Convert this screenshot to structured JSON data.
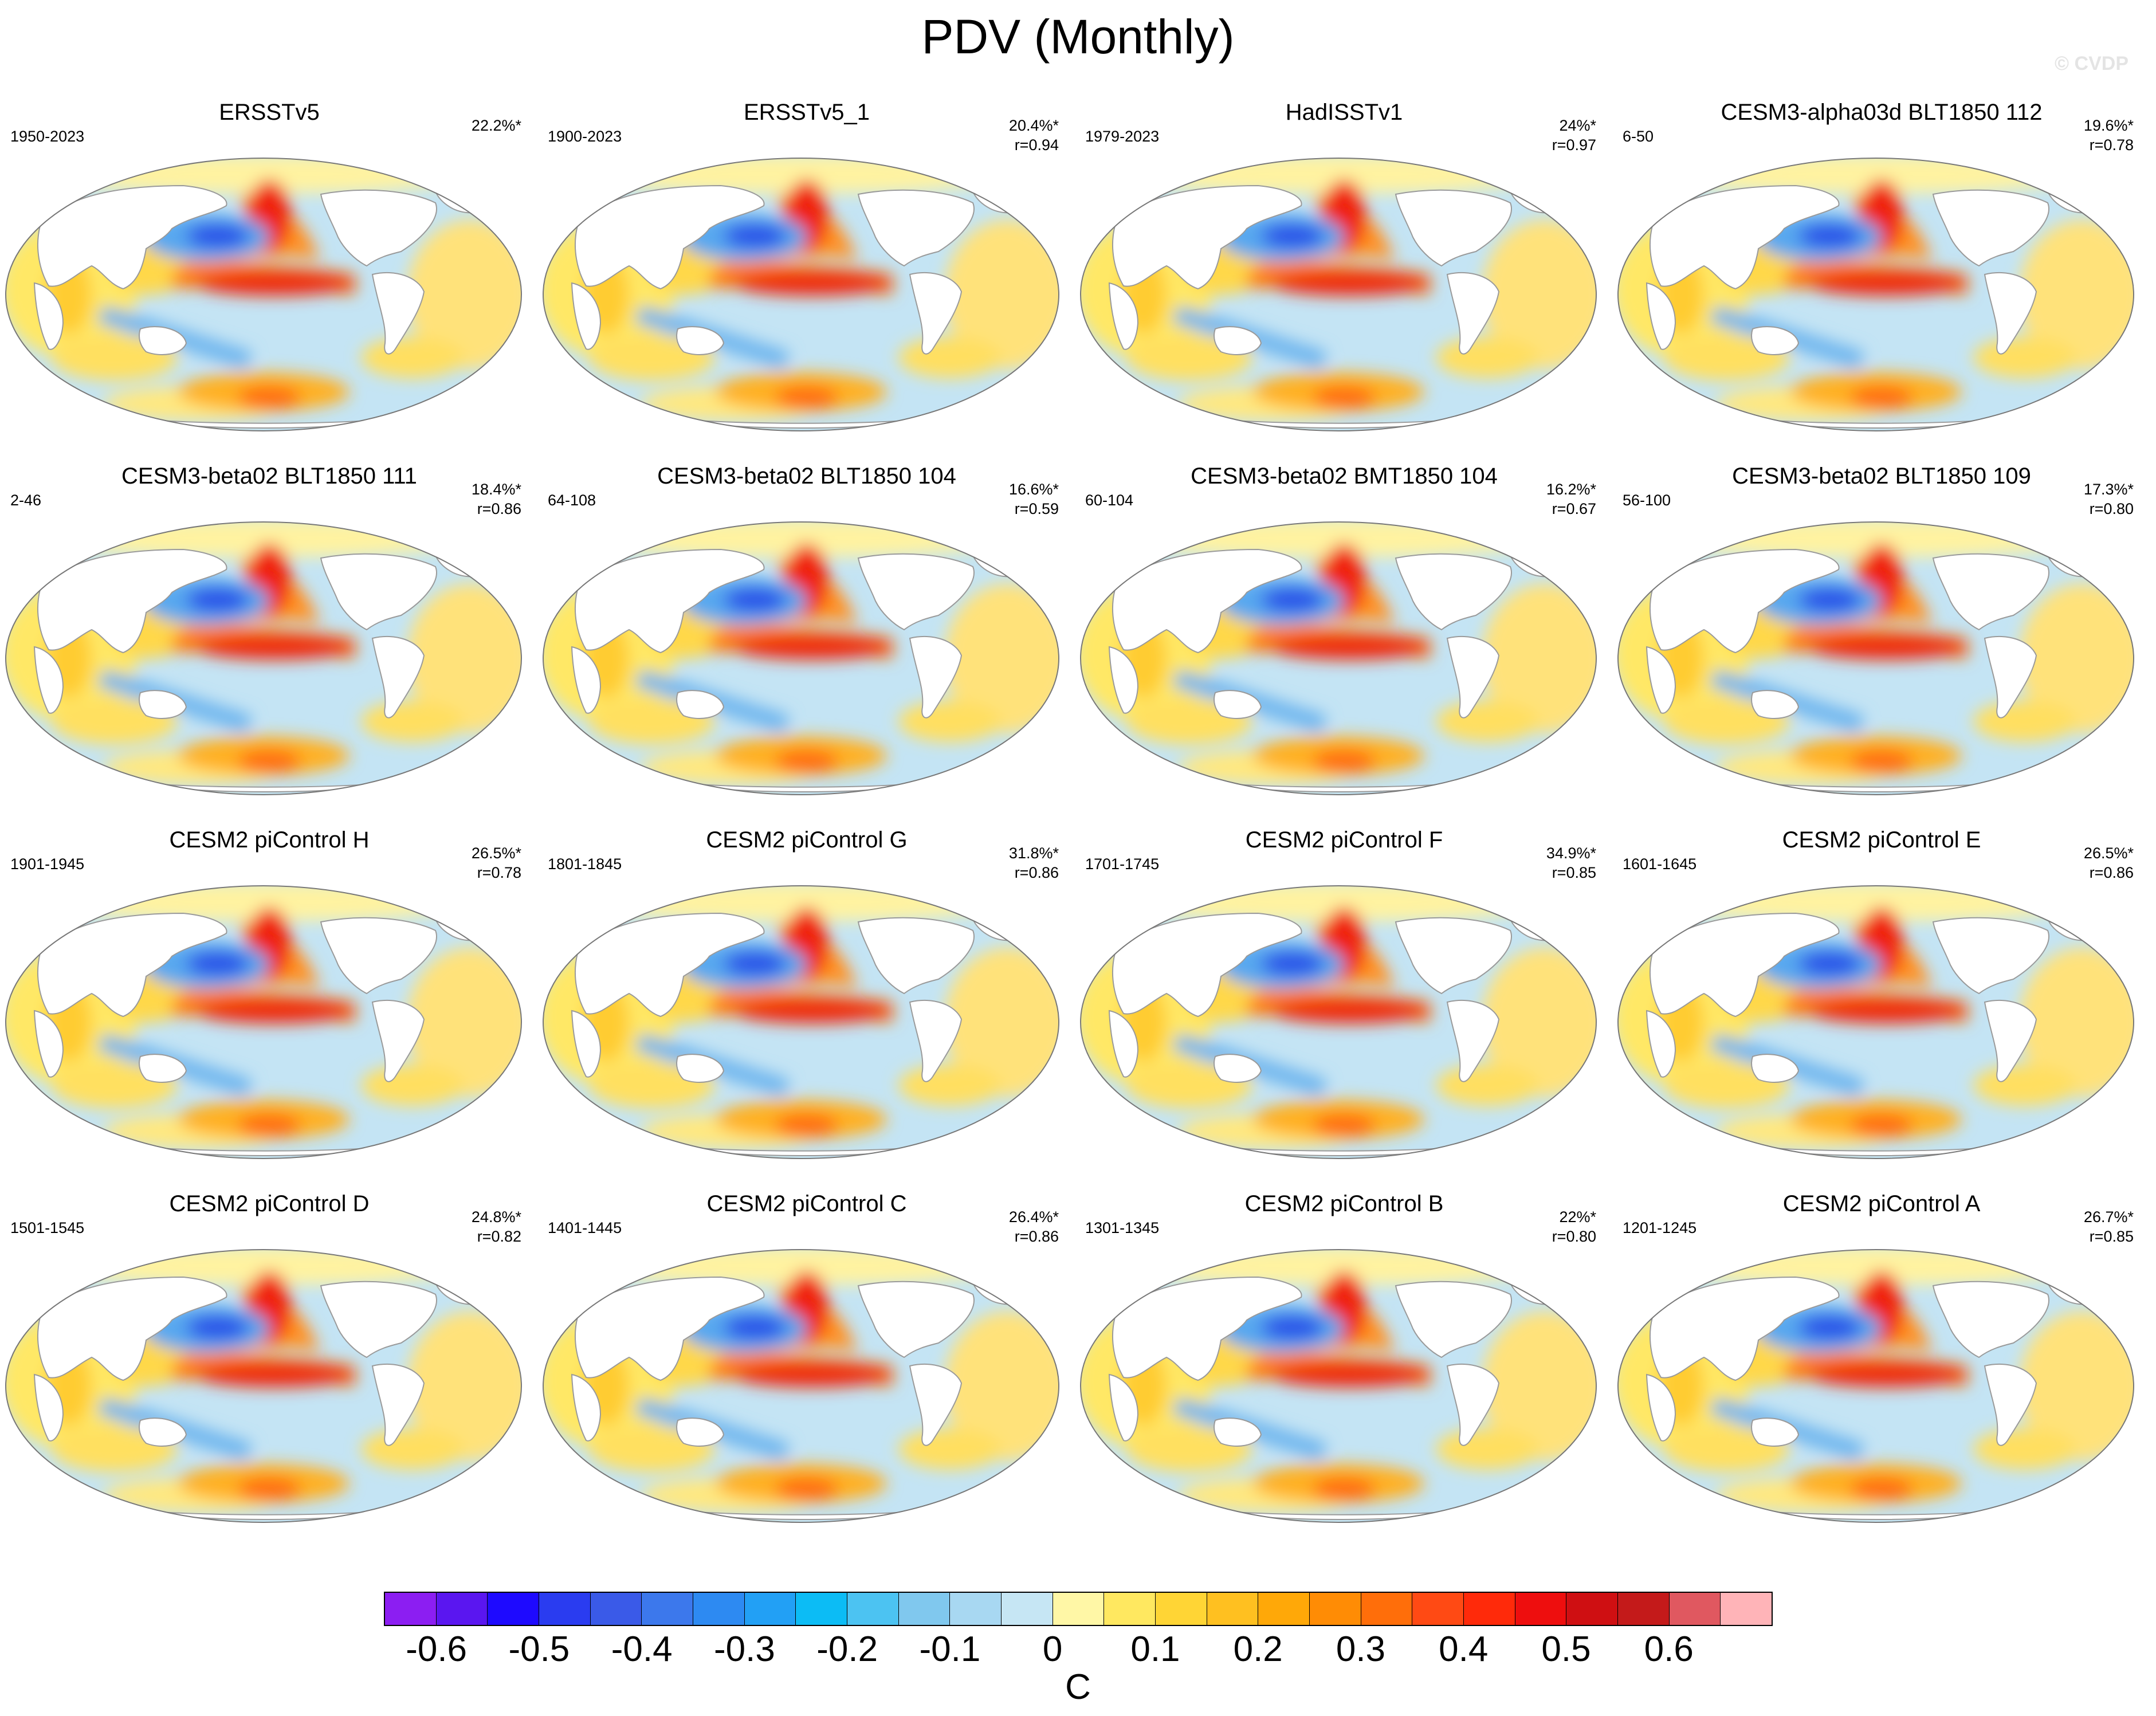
{
  "title": "PDV (Monthly)",
  "watermark": "© CVDP",
  "panels": [
    {
      "name": "ERSSTv5",
      "period": "1950-2023",
      "pct": "22.2%*",
      "r": ""
    },
    {
      "name": "ERSSTv5_1",
      "period": "1900-2023",
      "pct": "20.4%*",
      "r": "r=0.94"
    },
    {
      "name": "HadISSTv1",
      "period": "1979-2023",
      "pct": "24%*",
      "r": "r=0.97"
    },
    {
      "name": "CESM3-alpha03d BLT1850 112",
      "period": "6-50",
      "pct": "19.6%*",
      "r": "r=0.78"
    },
    {
      "name": "CESM3-beta02 BLT1850 111",
      "period": "2-46",
      "pct": "18.4%*",
      "r": "r=0.86"
    },
    {
      "name": "CESM3-beta02 BLT1850 104",
      "period": "64-108",
      "pct": "16.6%*",
      "r": "r=0.59"
    },
    {
      "name": "CESM3-beta02 BMT1850 104",
      "period": "60-104",
      "pct": "16.2%*",
      "r": "r=0.67"
    },
    {
      "name": "CESM3-beta02 BLT1850 109",
      "period": "56-100",
      "pct": "17.3%*",
      "r": "r=0.80"
    },
    {
      "name": "CESM2 piControl H",
      "period": "1901-1945",
      "pct": "26.5%*",
      "r": "r=0.78"
    },
    {
      "name": "CESM2 piControl G",
      "period": "1801-1845",
      "pct": "31.8%*",
      "r": "r=0.86"
    },
    {
      "name": "CESM2 piControl F",
      "period": "1701-1745",
      "pct": "34.9%*",
      "r": "r=0.85"
    },
    {
      "name": "CESM2 piControl E",
      "period": "1601-1645",
      "pct": "26.5%*",
      "r": "r=0.86"
    },
    {
      "name": "CESM2 piControl D",
      "period": "1501-1545",
      "pct": "24.8%*",
      "r": "r=0.82"
    },
    {
      "name": "CESM2 piControl C",
      "period": "1401-1445",
      "pct": "26.4%*",
      "r": "r=0.86"
    },
    {
      "name": "CESM2 piControl B",
      "period": "1301-1345",
      "pct": "22%*",
      "r": "r=0.80"
    },
    {
      "name": "CESM2 piControl A",
      "period": "1201-1245",
      "pct": "26.7%*",
      "r": "r=0.85"
    }
  ],
  "colorbar": {
    "unit": "C",
    "labels": [
      "-0.6",
      "-0.5",
      "-0.4",
      "-0.3",
      "-0.2",
      "-0.1",
      "0",
      "0.1",
      "0.2",
      "0.3",
      "0.4",
      "0.5",
      "0.6"
    ],
    "colors": [
      "#8c1ef2",
      "#5a16f0",
      "#1e0aff",
      "#2a3cf0",
      "#3a5ae8",
      "#3c78ec",
      "#2d8af2",
      "#22a0f5",
      "#0cbcf5",
      "#4cc3f2",
      "#80c8ee",
      "#a8d8f2",
      "#c6e6f4",
      "#fff7a6",
      "#ffe860",
      "#ffd535",
      "#ffc020",
      "#ffa808",
      "#ff8c05",
      "#ff6e0a",
      "#ff4a14",
      "#ff2a0a",
      "#ee0e0e",
      "#cf0f12",
      "#c41a1a",
      "#e05860",
      "#ffb4b8"
    ]
  }
}
